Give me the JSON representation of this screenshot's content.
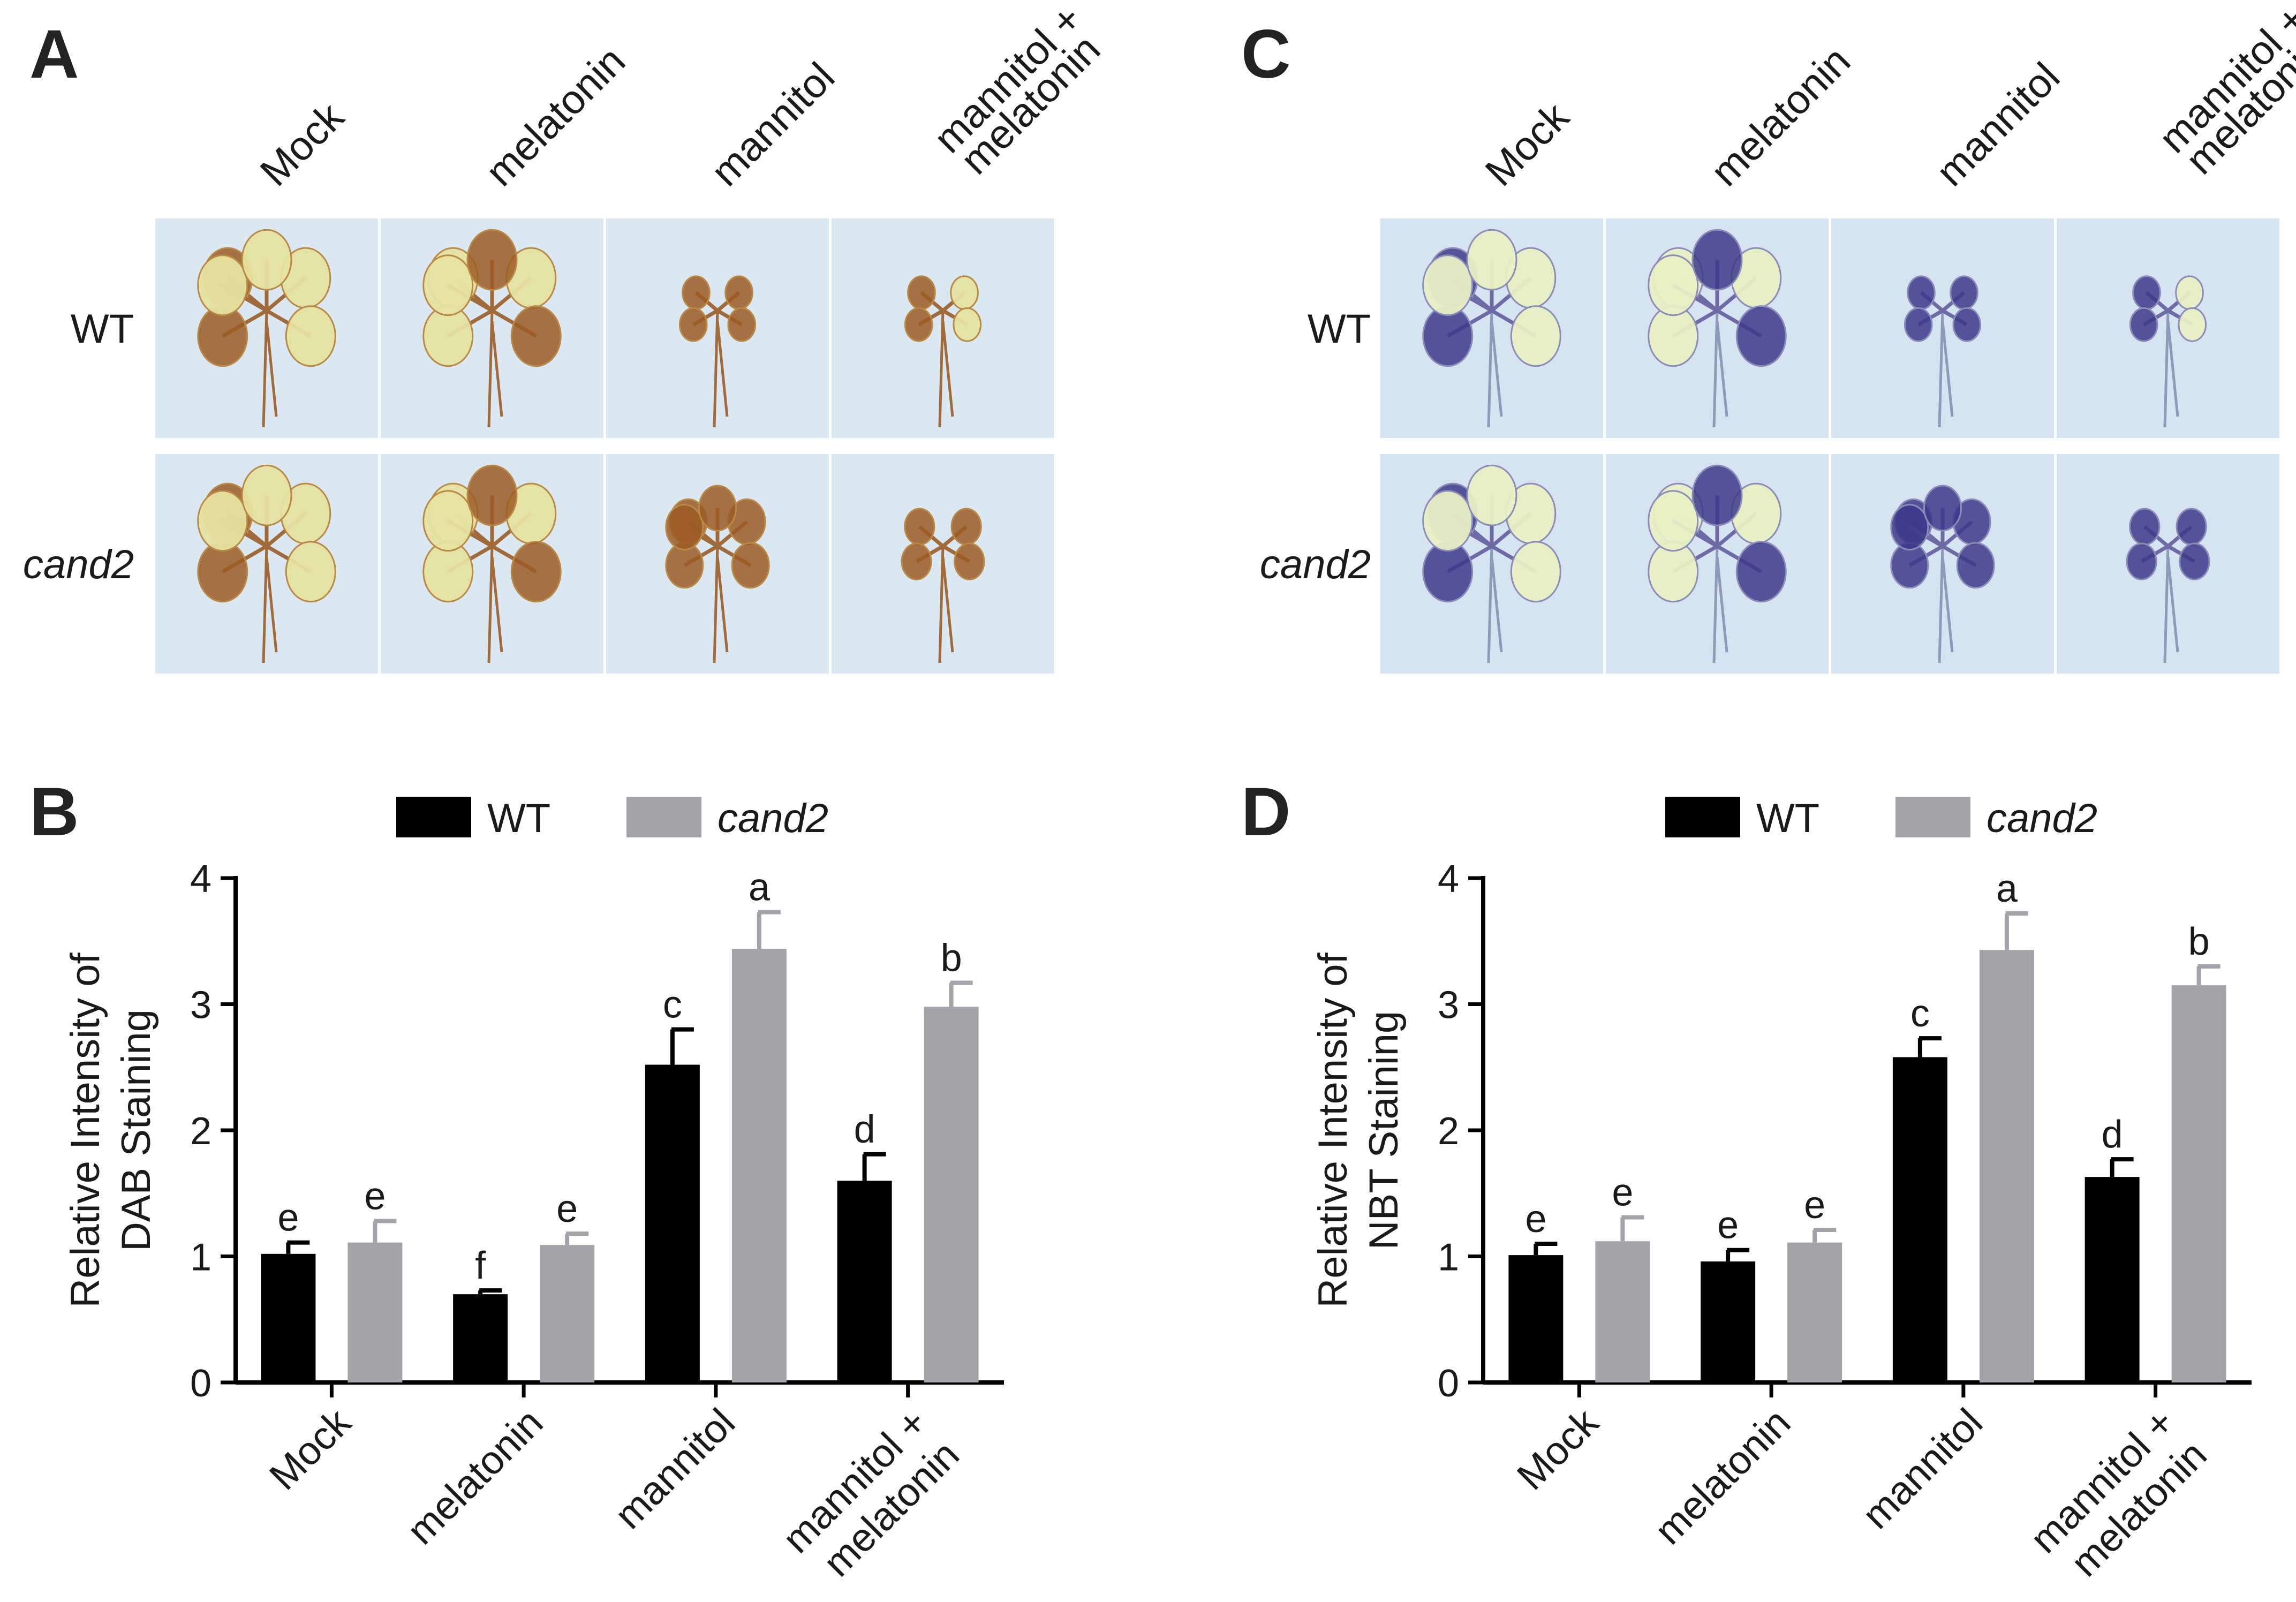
{
  "figure": {
    "colors": {
      "wt": "#000000",
      "cand2": "#a3a3a8",
      "axis": "#000000",
      "photo_bg_dab": "#dbe8f2",
      "photo_bg_nbt": "#d6e3f0",
      "dab_tissue": "#e6e1a0",
      "dab_stain": "#9b5a24",
      "nbt_tissue": "#e9efc4",
      "nbt_stain": "#3b3a8a",
      "stem": "#a06a3a"
    },
    "panel_a": {
      "label": "A",
      "columns": [
        "Mock",
        "melatonin",
        "mannitol",
        "mannitol +",
        "melatonin"
      ],
      "rows": [
        "WT",
        "cand2"
      ],
      "column_keys": [
        "Mock",
        "melatonin",
        "mannitol",
        "mannitol + melatonin"
      ]
    },
    "panel_c": {
      "label": "C",
      "columns": [
        "Mock",
        "melatonin",
        "mannitol",
        "mannitol +",
        "melatonin"
      ],
      "rows": [
        "WT",
        "cand2"
      ]
    }
  },
  "chart_data": [
    {
      "type": "bar",
      "panel": "B",
      "title": "",
      "ylabel_line1": "Relative Intensity of",
      "ylabel_line2": "DAB Staining",
      "categories": [
        "Mock",
        "melatonin",
        "mannitol",
        "mannitol +\nmelatonin"
      ],
      "category_line1": [
        "Mock",
        "melatonin",
        "mannitol",
        "mannitol +"
      ],
      "category_line2": [
        "",
        "",
        "",
        "melatonin"
      ],
      "ylim": [
        0,
        4
      ],
      "yticks": [
        "0",
        "1",
        "2",
        "3",
        "4"
      ],
      "legend": [
        "WT",
        "cand2"
      ],
      "series": [
        {
          "name": "WT",
          "values": [
            1.02,
            0.7,
            2.52,
            1.6
          ],
          "errors": [
            0.09,
            0.03,
            0.28,
            0.21
          ],
          "letters": [
            "e",
            "f",
            "c",
            "d"
          ]
        },
        {
          "name": "cand2",
          "values": [
            1.11,
            1.09,
            3.44,
            2.98
          ],
          "errors": [
            0.17,
            0.09,
            0.29,
            0.19
          ],
          "letters": [
            "e",
            "e",
            "a",
            "b"
          ]
        }
      ]
    },
    {
      "type": "bar",
      "panel": "D",
      "title": "",
      "ylabel_line1": "Relative Intensity of",
      "ylabel_line2": "NBT Staining",
      "categories": [
        "Mock",
        "melatonin",
        "mannitol",
        "mannitol +\nmelatonin"
      ],
      "category_line1": [
        "Mock",
        "melatonin",
        "mannitol",
        "mannitol +"
      ],
      "category_line2": [
        "",
        "",
        "",
        "melatonin"
      ],
      "ylim": [
        0,
        4
      ],
      "yticks": [
        "0",
        "1",
        "2",
        "3",
        "4"
      ],
      "legend": [
        "WT",
        "cand2"
      ],
      "series": [
        {
          "name": "WT",
          "values": [
            1.01,
            0.96,
            2.58,
            1.63
          ],
          "errors": [
            0.09,
            0.09,
            0.15,
            0.14
          ],
          "letters": [
            "e",
            "e",
            "c",
            "d"
          ]
        },
        {
          "name": "cand2",
          "values": [
            1.12,
            1.11,
            3.43,
            3.15
          ],
          "errors": [
            0.19,
            0.1,
            0.29,
            0.15
          ],
          "letters": [
            "e",
            "e",
            "a",
            "b"
          ]
        }
      ]
    }
  ]
}
